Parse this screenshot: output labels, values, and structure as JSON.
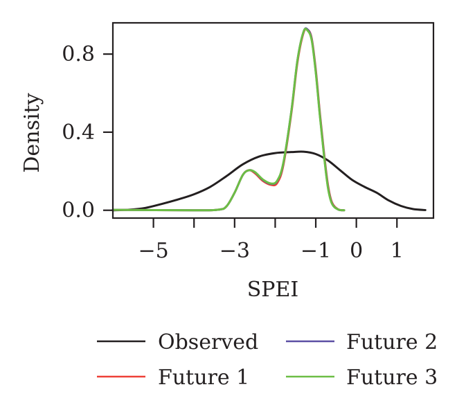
{
  "chart_data": {
    "type": "line",
    "title": "",
    "xlabel": "SPEI",
    "ylabel": "Density",
    "xlim": [
      -6.0,
      1.9
    ],
    "ylim": [
      -0.04,
      0.96
    ],
    "grid": false,
    "legend_position": "bottom",
    "x_ticks": [
      -5,
      -4,
      -3,
      -2,
      -1,
      0,
      1
    ],
    "x_tick_labels": [
      {
        "value": -5,
        "label": "−5"
      },
      {
        "value": -3,
        "label": "−3"
      },
      {
        "value": -1,
        "label": "−1"
      },
      {
        "value": 0,
        "label": "0"
      },
      {
        "value": 1,
        "label": "1"
      }
    ],
    "y_ticks": [
      0.0,
      0.4,
      0.8
    ],
    "y_tick_labels": [
      {
        "value": 0.0,
        "label": "0.0"
      },
      {
        "value": 0.4,
        "label": "0.4"
      },
      {
        "value": 0.8,
        "label": "0.8"
      }
    ],
    "series": [
      {
        "name": "Observed",
        "color": "#231f20",
        "points": [
          [
            -6.0,
            0.0
          ],
          [
            -5.6,
            0.003
          ],
          [
            -5.2,
            0.012
          ],
          [
            -4.8,
            0.032
          ],
          [
            -4.4,
            0.055
          ],
          [
            -4.0,
            0.082
          ],
          [
            -3.6,
            0.12
          ],
          [
            -3.2,
            0.175
          ],
          [
            -2.8,
            0.235
          ],
          [
            -2.4,
            0.275
          ],
          [
            -2.0,
            0.293
          ],
          [
            -1.6,
            0.298
          ],
          [
            -1.3,
            0.3
          ],
          [
            -1.0,
            0.288
          ],
          [
            -0.7,
            0.255
          ],
          [
            -0.4,
            0.205
          ],
          [
            -0.1,
            0.155
          ],
          [
            0.2,
            0.12
          ],
          [
            0.5,
            0.09
          ],
          [
            0.8,
            0.05
          ],
          [
            1.1,
            0.022
          ],
          [
            1.4,
            0.006
          ],
          [
            1.7,
            0.001
          ]
        ]
      },
      {
        "name": "Future 1",
        "color": "#ee4037",
        "points": [
          [
            -6.0,
            0.002
          ],
          [
            -4.0,
            0.0
          ],
          [
            -3.4,
            0.003
          ],
          [
            -3.2,
            0.02
          ],
          [
            -3.0,
            0.09
          ],
          [
            -2.8,
            0.18
          ],
          [
            -2.65,
            0.205
          ],
          [
            -2.5,
            0.19
          ],
          [
            -2.3,
            0.15
          ],
          [
            -2.1,
            0.13
          ],
          [
            -1.95,
            0.14
          ],
          [
            -1.8,
            0.23
          ],
          [
            -1.6,
            0.5
          ],
          [
            -1.45,
            0.76
          ],
          [
            -1.3,
            0.91
          ],
          [
            -1.2,
            0.925
          ],
          [
            -1.1,
            0.88
          ],
          [
            -1.0,
            0.72
          ],
          [
            -0.9,
            0.5
          ],
          [
            -0.8,
            0.3
          ],
          [
            -0.7,
            0.13
          ],
          [
            -0.6,
            0.04
          ],
          [
            -0.45,
            0.005
          ],
          [
            -0.3,
            0.0
          ]
        ]
      },
      {
        "name": "Future 2",
        "color": "#5b4ea3",
        "points": [
          [
            -6.0,
            0.002
          ],
          [
            -4.0,
            0.0
          ],
          [
            -3.4,
            0.003
          ],
          [
            -3.2,
            0.02
          ],
          [
            -3.0,
            0.09
          ],
          [
            -2.8,
            0.18
          ],
          [
            -2.65,
            0.205
          ],
          [
            -2.5,
            0.195
          ],
          [
            -2.3,
            0.155
          ],
          [
            -2.1,
            0.135
          ],
          [
            -1.95,
            0.15
          ],
          [
            -1.8,
            0.24
          ],
          [
            -1.6,
            0.51
          ],
          [
            -1.45,
            0.77
          ],
          [
            -1.3,
            0.915
          ],
          [
            -1.2,
            0.925
          ],
          [
            -1.1,
            0.875
          ],
          [
            -1.0,
            0.71
          ],
          [
            -0.9,
            0.49
          ],
          [
            -0.8,
            0.29
          ],
          [
            -0.7,
            0.12
          ],
          [
            -0.6,
            0.035
          ],
          [
            -0.45,
            0.004
          ],
          [
            -0.3,
            0.0
          ]
        ]
      },
      {
        "name": "Future 3",
        "color": "#6cbe45",
        "points": [
          [
            -6.0,
            0.002
          ],
          [
            -4.0,
            0.0
          ],
          [
            -3.4,
            0.003
          ],
          [
            -3.2,
            0.02
          ],
          [
            -3.0,
            0.09
          ],
          [
            -2.8,
            0.18
          ],
          [
            -2.65,
            0.205
          ],
          [
            -2.5,
            0.196
          ],
          [
            -2.3,
            0.157
          ],
          [
            -2.1,
            0.137
          ],
          [
            -1.95,
            0.152
          ],
          [
            -1.8,
            0.242
          ],
          [
            -1.6,
            0.51
          ],
          [
            -1.45,
            0.77
          ],
          [
            -1.3,
            0.915
          ],
          [
            -1.2,
            0.92
          ],
          [
            -1.1,
            0.87
          ],
          [
            -1.0,
            0.705
          ],
          [
            -0.9,
            0.485
          ],
          [
            -0.8,
            0.285
          ],
          [
            -0.7,
            0.115
          ],
          [
            -0.6,
            0.033
          ],
          [
            -0.45,
            0.004
          ],
          [
            -0.3,
            0.0
          ]
        ]
      }
    ]
  }
}
